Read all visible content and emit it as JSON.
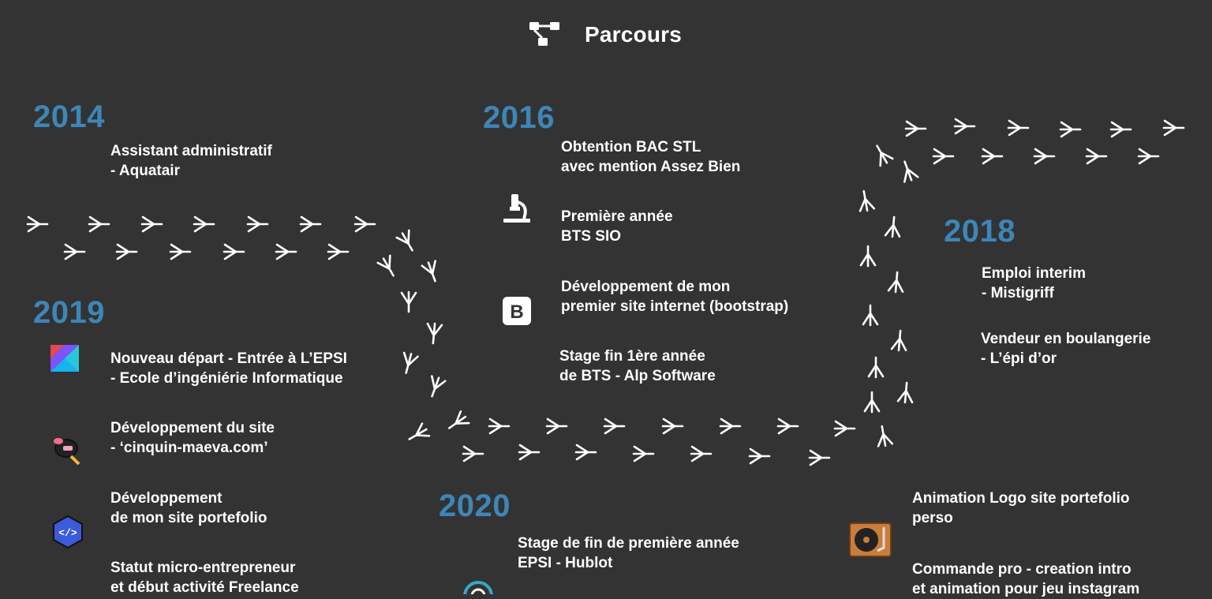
{
  "header": {
    "title": "Parcours",
    "icon": "sitemap-icon"
  },
  "timeline": {
    "y2014": {
      "year": "2014",
      "e1": [
        "Assistant administratif",
        "- Aquatair"
      ]
    },
    "y2016": {
      "year": "2016",
      "e1": [
        "Obtention BAC STL",
        "avec mention Assez Bien"
      ],
      "e2": [
        "Première année",
        "BTS SIO"
      ],
      "e3": [
        "Développement de mon",
        "premier site internet (bootstrap)"
      ],
      "e4": [
        "Stage fin 1ère année",
        "de BTS - Alp Software"
      ]
    },
    "y2018": {
      "year": "2018",
      "e1": [
        "Emploi interim",
        "- Mistigriff"
      ],
      "e2": [
        "Vendeur en boulangerie",
        "- L’épi d’or"
      ]
    },
    "y2019": {
      "year": "2019",
      "e1": [
        "Nouveau départ - Entrée à L’EPSI",
        "- Ecole d’ingéniérie Informatique"
      ],
      "e2": [
        "Développement du site",
        "- ‘cinquin-maeva.com’"
      ],
      "e3": [
        "Développement",
        "de mon site portefolio"
      ],
      "e4": [
        "Statut micro-entrepreneur",
        "et début activité Freelance"
      ]
    },
    "y2020": {
      "year": "2020",
      "e1": [
        "Stage de fin de première année",
        "EPSI - Hublot"
      ],
      "e2": [
        "Animation Logo site portefolio",
        "perso"
      ],
      "e3": [
        "Commande pro - creation intro",
        "et animation pour jeu instagram"
      ]
    }
  },
  "icons": [
    "microscope-icon",
    "bootstrap-icon",
    "kotlin-icon",
    "makeup-icon",
    "code-icon",
    "turntable-icon",
    "hublot-icon",
    "bird-footprint-icon"
  ],
  "colors": {
    "background": "#333333",
    "year": "#3d86b8",
    "text": "#ffffff"
  }
}
